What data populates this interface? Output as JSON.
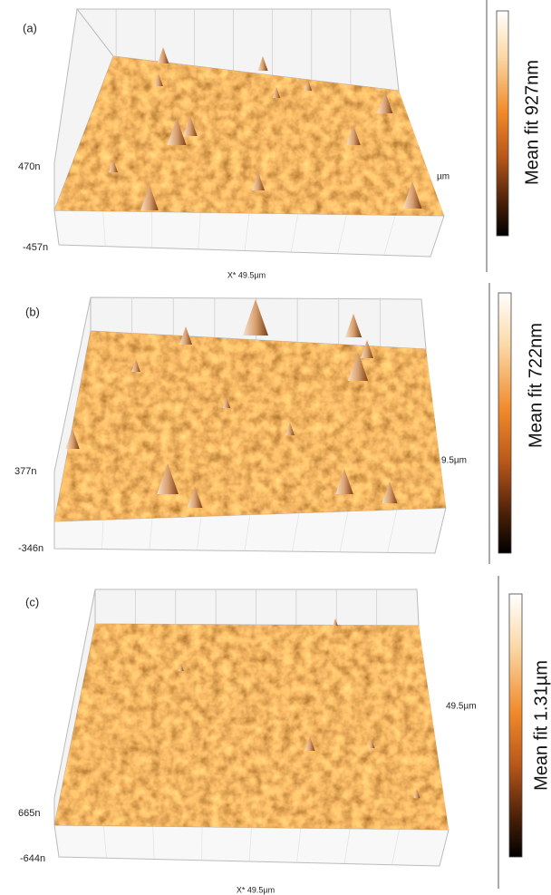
{
  "panels": [
    {
      "label": "(a)",
      "z_max": "470n",
      "z_min": "-457n",
      "x_axis": "X* 49.5µm",
      "y_axis": "µm",
      "colorbar": "Mean fit 927nm"
    },
    {
      "label": "(b)",
      "z_max": "377n",
      "z_min": "-346n",
      "y_axis": "9.5µm",
      "colorbar": "Mean fit 722nm"
    },
    {
      "label": "(c)",
      "z_max": "665n",
      "z_min": "-644n",
      "x_axis": "X* 49.5µm",
      "y_axis": "49.5µm",
      "colorbar": "Mean fit 1.31µm"
    }
  ]
}
